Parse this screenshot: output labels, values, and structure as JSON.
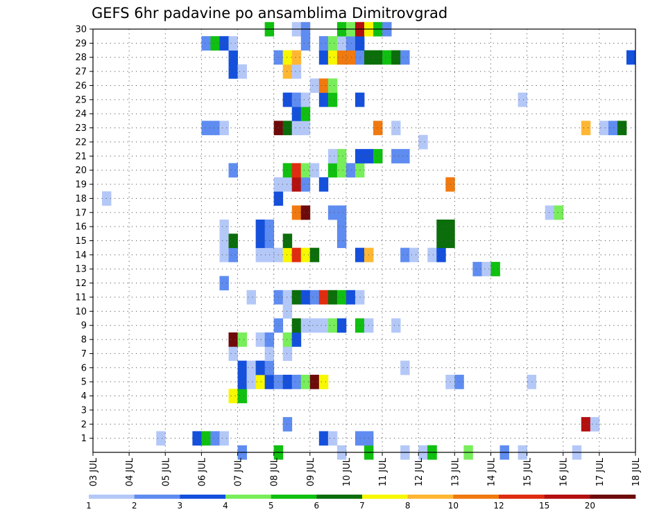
{
  "chart_data": {
    "type": "heatmap",
    "title": "GEFS 6hr padavine po ansamblima Dimitrovgrad",
    "x_ticks": [
      "03 JUL",
      "04 JUL",
      "05 JUL",
      "06 JUL",
      "07 JUL",
      "08 JUL",
      "09 JUL",
      "10 JUL",
      "11 JUL",
      "12 JUL",
      "13 JUL",
      "14 JUL",
      "15 JUL",
      "16 JUL",
      "17 JUL",
      "18 JUL"
    ],
    "y_ticks": [
      "1",
      "2",
      "3",
      "4",
      "5",
      "6",
      "7",
      "8",
      "9",
      "10",
      "11",
      "12",
      "13",
      "14",
      "15",
      "16",
      "17",
      "18",
      "19",
      "20",
      "21",
      "22",
      "23",
      "24",
      "25",
      "26",
      "27",
      "28",
      "29",
      "30"
    ],
    "y_range": [
      0,
      30
    ],
    "x_steps_per_day": 4,
    "grid": true,
    "colorbar": {
      "labels": [
        "1",
        "2",
        "3",
        "4",
        "5",
        "6",
        "7",
        "8",
        "10",
        "12",
        "15",
        "20"
      ],
      "colors": [
        "#b4c8f8",
        "#5f8cf0",
        "#1550dc",
        "#78ee5a",
        "#10c010",
        "#0b6e0b",
        "#f7f700",
        "#ffb733",
        "#f07a10",
        "#e02c10",
        "#b41010",
        "#6e0a0a"
      ]
    },
    "cells": [
      {
        "member": 0,
        "step": 16,
        "cls": 1
      },
      {
        "member": 0,
        "step": 20,
        "cls": 4
      },
      {
        "member": 0,
        "step": 27,
        "cls": 0
      },
      {
        "member": 0,
        "step": 30,
        "cls": 4
      },
      {
        "member": 0,
        "step": 34,
        "cls": 0
      },
      {
        "member": 0,
        "step": 36,
        "cls": 0
      },
      {
        "member": 0,
        "step": 37,
        "cls": 4
      },
      {
        "member": 0,
        "step": 37,
        "cls": 4
      },
      {
        "member": 0,
        "step": 41,
        "cls": 3
      },
      {
        "member": 0,
        "step": 45,
        "cls": 1
      },
      {
        "member": 0,
        "step": 47,
        "cls": 0
      },
      {
        "member": 0,
        "step": 53,
        "cls": 0
      },
      {
        "member": 1,
        "step": 7,
        "cls": 0
      },
      {
        "member": 1,
        "step": 11,
        "cls": 2
      },
      {
        "member": 1,
        "step": 12,
        "cls": 4
      },
      {
        "member": 1,
        "step": 13,
        "cls": 1
      },
      {
        "member": 1,
        "step": 14,
        "cls": 0
      },
      {
        "member": 1,
        "step": 25,
        "cls": 2
      },
      {
        "member": 1,
        "step": 26,
        "cls": 0
      },
      {
        "member": 1,
        "step": 29,
        "cls": 1
      },
      {
        "member": 1,
        "step": 30,
        "cls": 1
      },
      {
        "member": 2,
        "step": 21,
        "cls": 1
      },
      {
        "member": 2,
        "step": 54,
        "cls": 10
      },
      {
        "member": 2,
        "step": 55,
        "cls": 0
      },
      {
        "member": 4,
        "step": 15,
        "cls": 6
      },
      {
        "member": 4,
        "step": 16,
        "cls": 4
      },
      {
        "member": 5,
        "step": 16,
        "cls": 2
      },
      {
        "member": 5,
        "step": 17,
        "cls": 0
      },
      {
        "member": 5,
        "step": 18,
        "cls": 6
      },
      {
        "member": 5,
        "step": 19,
        "cls": 2
      },
      {
        "member": 5,
        "step": 20,
        "cls": 1
      },
      {
        "member": 5,
        "step": 21,
        "cls": 2
      },
      {
        "member": 5,
        "step": 22,
        "cls": 1
      },
      {
        "member": 5,
        "step": 23,
        "cls": 3
      },
      {
        "member": 5,
        "step": 24,
        "cls": 11
      },
      {
        "member": 5,
        "step": 25,
        "cls": 6
      },
      {
        "member": 5,
        "step": 39,
        "cls": 0
      },
      {
        "member": 5,
        "step": 40,
        "cls": 1
      },
      {
        "member": 5,
        "step": 48,
        "cls": 0
      },
      {
        "member": 6,
        "step": 16,
        "cls": 2
      },
      {
        "member": 6,
        "step": 17,
        "cls": 0
      },
      {
        "member": 6,
        "step": 18,
        "cls": 2
      },
      {
        "member": 6,
        "step": 19,
        "cls": 1
      },
      {
        "member": 6,
        "step": 34,
        "cls": 0
      },
      {
        "member": 7,
        "step": 15,
        "cls": 0
      },
      {
        "member": 7,
        "step": 19,
        "cls": 0
      },
      {
        "member": 7,
        "step": 21,
        "cls": 0
      },
      {
        "member": 8,
        "step": 15,
        "cls": 11
      },
      {
        "member": 8,
        "step": 16,
        "cls": 3
      },
      {
        "member": 8,
        "step": 18,
        "cls": 0
      },
      {
        "member": 8,
        "step": 19,
        "cls": 1
      },
      {
        "member": 8,
        "step": 21,
        "cls": 3
      },
      {
        "member": 8,
        "step": 22,
        "cls": 2
      },
      {
        "member": 9,
        "step": 20,
        "cls": 1
      },
      {
        "member": 9,
        "step": 22,
        "cls": 5
      },
      {
        "member": 9,
        "step": 23,
        "cls": 0
      },
      {
        "member": 9,
        "step": 24,
        "cls": 0
      },
      {
        "member": 9,
        "step": 25,
        "cls": 0
      },
      {
        "member": 9,
        "step": 26,
        "cls": 3
      },
      {
        "member": 9,
        "step": 27,
        "cls": 2
      },
      {
        "member": 9,
        "step": 29,
        "cls": 4
      },
      {
        "member": 9,
        "step": 30,
        "cls": 0
      },
      {
        "member": 9,
        "step": 33,
        "cls": 0
      },
      {
        "member": 10,
        "step": 21,
        "cls": 0
      },
      {
        "member": 11,
        "step": 17,
        "cls": 0
      },
      {
        "member": 11,
        "step": 20,
        "cls": 1
      },
      {
        "member": 11,
        "step": 21,
        "cls": 0
      },
      {
        "member": 11,
        "step": 22,
        "cls": 5
      },
      {
        "member": 11,
        "step": 23,
        "cls": 2
      },
      {
        "member": 11,
        "step": 24,
        "cls": 1
      },
      {
        "member": 11,
        "step": 25,
        "cls": 9
      },
      {
        "member": 11,
        "step": 26,
        "cls": 5
      },
      {
        "member": 11,
        "step": 27,
        "cls": 4
      },
      {
        "member": 11,
        "step": 28,
        "cls": 2
      },
      {
        "member": 11,
        "step": 29,
        "cls": 0
      },
      {
        "member": 12,
        "step": 14,
        "cls": 1
      },
      {
        "member": 13,
        "step": 42,
        "cls": 1
      },
      {
        "member": 13,
        "step": 43,
        "cls": 0
      },
      {
        "member": 13,
        "step": 44,
        "cls": 4
      },
      {
        "member": 14,
        "step": 14,
        "cls": 0
      },
      {
        "member": 14,
        "step": 15,
        "cls": 1
      },
      {
        "member": 14,
        "step": 18,
        "cls": 0
      },
      {
        "member": 14,
        "step": 19,
        "cls": 0
      },
      {
        "member": 14,
        "step": 20,
        "cls": 0
      },
      {
        "member": 14,
        "step": 21,
        "cls": 6
      },
      {
        "member": 14,
        "step": 22,
        "cls": 9
      },
      {
        "member": 14,
        "step": 23,
        "cls": 6
      },
      {
        "member": 14,
        "step": 24,
        "cls": 5
      },
      {
        "member": 14,
        "step": 29,
        "cls": 2
      },
      {
        "member": 14,
        "step": 30,
        "cls": 7
      },
      {
        "member": 14,
        "step": 34,
        "cls": 1
      },
      {
        "member": 14,
        "step": 35,
        "cls": 0
      },
      {
        "member": 14,
        "step": 37,
        "cls": 0
      },
      {
        "member": 14,
        "step": 38,
        "cls": 2
      },
      {
        "member": 15,
        "step": 14,
        "cls": 0
      },
      {
        "member": 15,
        "step": 15,
        "cls": 5
      },
      {
        "member": 15,
        "step": 18,
        "cls": 2
      },
      {
        "member": 15,
        "step": 19,
        "cls": 1
      },
      {
        "member": 15,
        "step": 21,
        "cls": 5
      },
      {
        "member": 15,
        "step": 27,
        "cls": 1
      },
      {
        "member": 15,
        "step": 38,
        "cls": 5
      },
      {
        "member": 15,
        "step": 39,
        "cls": 5
      },
      {
        "member": 16,
        "step": 14,
        "cls": 0
      },
      {
        "member": 16,
        "step": 18,
        "cls": 2
      },
      {
        "member": 16,
        "step": 19,
        "cls": 1
      },
      {
        "member": 16,
        "step": 27,
        "cls": 1
      },
      {
        "member": 16,
        "step": 38,
        "cls": 5
      },
      {
        "member": 16,
        "step": 39,
        "cls": 5
      },
      {
        "member": 17,
        "step": 22,
        "cls": 8
      },
      {
        "member": 17,
        "step": 23,
        "cls": 11
      },
      {
        "member": 17,
        "step": 26,
        "cls": 1
      },
      {
        "member": 17,
        "step": 27,
        "cls": 1
      },
      {
        "member": 17,
        "step": 50,
        "cls": 0
      },
      {
        "member": 17,
        "step": 51,
        "cls": 3
      },
      {
        "member": 18,
        "step": 1,
        "cls": 0
      },
      {
        "member": 18,
        "step": 20,
        "cls": 2
      },
      {
        "member": 19,
        "step": 20,
        "cls": 0
      },
      {
        "member": 19,
        "step": 21,
        "cls": 0
      },
      {
        "member": 19,
        "step": 22,
        "cls": 10
      },
      {
        "member": 19,
        "step": 23,
        "cls": 1
      },
      {
        "member": 19,
        "step": 25,
        "cls": 2
      },
      {
        "member": 19,
        "step": 39,
        "cls": 8
      },
      {
        "member": 20,
        "step": 15,
        "cls": 1
      },
      {
        "member": 20,
        "step": 21,
        "cls": 4
      },
      {
        "member": 20,
        "step": 22,
        "cls": 9
      },
      {
        "member": 20,
        "step": 23,
        "cls": 3
      },
      {
        "member": 20,
        "step": 24,
        "cls": 0
      },
      {
        "member": 20,
        "step": 26,
        "cls": 4
      },
      {
        "member": 20,
        "step": 27,
        "cls": 3
      },
      {
        "member": 20,
        "step": 28,
        "cls": 1
      },
      {
        "member": 20,
        "step": 29,
        "cls": 3
      },
      {
        "member": 21,
        "step": 26,
        "cls": 0
      },
      {
        "member": 21,
        "step": 27,
        "cls": 3
      },
      {
        "member": 21,
        "step": 29,
        "cls": 2
      },
      {
        "member": 21,
        "step": 30,
        "cls": 2
      },
      {
        "member": 21,
        "step": 31,
        "cls": 4
      },
      {
        "member": 21,
        "step": 33,
        "cls": 1
      },
      {
        "member": 21,
        "step": 34,
        "cls": 1
      },
      {
        "member": 22,
        "step": 36,
        "cls": 0
      },
      {
        "member": 23,
        "step": 12,
        "cls": 1
      },
      {
        "member": 23,
        "step": 13,
        "cls": 1
      },
      {
        "member": 23,
        "step": 14,
        "cls": 0
      },
      {
        "member": 23,
        "step": 20,
        "cls": 11
      },
      {
        "member": 23,
        "step": 21,
        "cls": 5
      },
      {
        "member": 23,
        "step": 22,
        "cls": 0
      },
      {
        "member": 23,
        "step": 23,
        "cls": 0
      },
      {
        "member": 23,
        "step": 31,
        "cls": 8
      },
      {
        "member": 23,
        "step": 33,
        "cls": 0
      },
      {
        "member": 23,
        "step": 54,
        "cls": 7
      },
      {
        "member": 23,
        "step": 56,
        "cls": 0
      },
      {
        "member": 23,
        "step": 57,
        "cls": 1
      },
      {
        "member": 23,
        "step": 58,
        "cls": 5
      },
      {
        "member": 24,
        "step": 22,
        "cls": 2
      },
      {
        "member": 24,
        "step": 23,
        "cls": 4
      },
      {
        "member": 25,
        "step": 21,
        "cls": 2
      },
      {
        "member": 25,
        "step": 22,
        "cls": 1
      },
      {
        "member": 25,
        "step": 23,
        "cls": 0
      },
      {
        "member": 25,
        "step": 25,
        "cls": 2
      },
      {
        "member": 25,
        "step": 26,
        "cls": 4
      },
      {
        "member": 25,
        "step": 29,
        "cls": 2
      },
      {
        "member": 25,
        "step": 47,
        "cls": 0
      },
      {
        "member": 26,
        "step": 24,
        "cls": 0
      },
      {
        "member": 26,
        "step": 25,
        "cls": 8
      },
      {
        "member": 26,
        "step": 26,
        "cls": 3
      },
      {
        "member": 27,
        "step": 15,
        "cls": 2
      },
      {
        "member": 27,
        "step": 16,
        "cls": 0
      },
      {
        "member": 27,
        "step": 21,
        "cls": 7
      },
      {
        "member": 27,
        "step": 22,
        "cls": 0
      },
      {
        "member": 28,
        "step": 15,
        "cls": 2
      },
      {
        "member": 28,
        "step": 20,
        "cls": 1
      },
      {
        "member": 28,
        "step": 21,
        "cls": 6
      },
      {
        "member": 28,
        "step": 22,
        "cls": 7
      },
      {
        "member": 28,
        "step": 25,
        "cls": 2
      },
      {
        "member": 28,
        "step": 26,
        "cls": 6
      },
      {
        "member": 28,
        "step": 27,
        "cls": 8
      },
      {
        "member": 28,
        "step": 28,
        "cls": 8
      },
      {
        "member": 28,
        "step": 29,
        "cls": 1
      },
      {
        "member": 28,
        "step": 30,
        "cls": 5
      },
      {
        "member": 28,
        "step": 31,
        "cls": 5
      },
      {
        "member": 28,
        "step": 32,
        "cls": 4
      },
      {
        "member": 28,
        "step": 33,
        "cls": 5
      },
      {
        "member": 28,
        "step": 34,
        "cls": 1
      },
      {
        "member": 28,
        "step": 59,
        "cls": 2
      },
      {
        "member": 29,
        "step": 12,
        "cls": 1
      },
      {
        "member": 29,
        "step": 13,
        "cls": 4
      },
      {
        "member": 29,
        "step": 14,
        "cls": 2
      },
      {
        "member": 29,
        "step": 15,
        "cls": 0
      },
      {
        "member": 29,
        "step": 23,
        "cls": 1
      },
      {
        "member": 29,
        "step": 25,
        "cls": 1
      },
      {
        "member": 29,
        "step": 26,
        "cls": 3
      },
      {
        "member": 29,
        "step": 27,
        "cls": 0
      },
      {
        "member": 29,
        "step": 28,
        "cls": 1
      },
      {
        "member": 29,
        "step": 29,
        "cls": 2
      },
      {
        "member": 30,
        "step": 19,
        "cls": 4
      },
      {
        "member": 30,
        "step": 22,
        "cls": 0
      },
      {
        "member": 30,
        "step": 23,
        "cls": 1
      },
      {
        "member": 30,
        "step": 27,
        "cls": 4
      },
      {
        "member": 30,
        "step": 28,
        "cls": 3
      },
      {
        "member": 30,
        "step": 29,
        "cls": 10
      },
      {
        "member": 30,
        "step": 30,
        "cls": 6
      },
      {
        "member": 30,
        "step": 31,
        "cls": 4
      },
      {
        "member": 30,
        "step": 32,
        "cls": 1
      }
    ]
  }
}
